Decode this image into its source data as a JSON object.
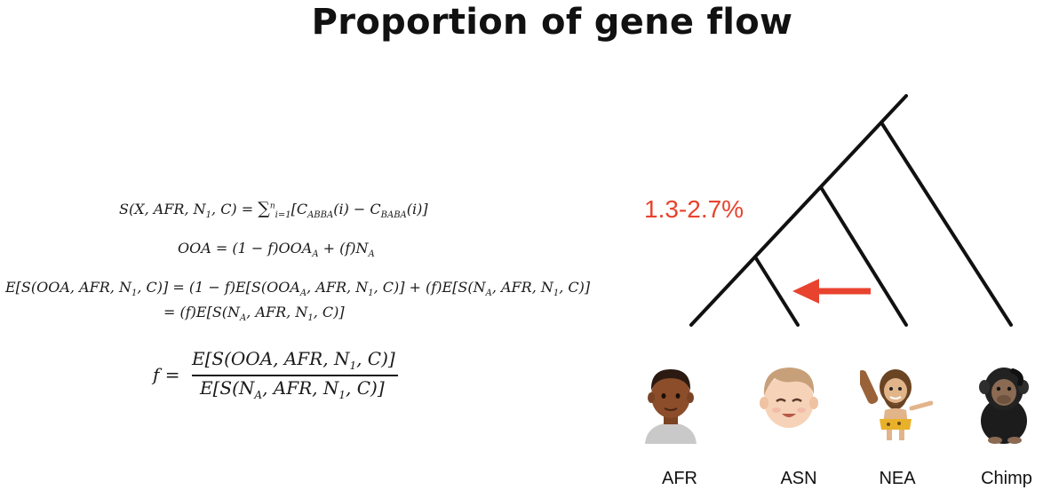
{
  "title": "Proportion of gene flow",
  "equations": {
    "line1_lhs": "S(X, AFR, N",
    "line1_mid": ", C) = ",
    "line1_sum": "∑",
    "line1_sum_sup": "n",
    "line1_sum_sub": "i=1",
    "line1_rhs_a": "[C",
    "line1_sub_a": "ABBA",
    "line1_rhs_b": "(i) − C",
    "line1_sub_b": "BABA",
    "line1_rhs_c": "(i)]",
    "line2": "OOA = (1 − f)OOA",
    "line2_sub": "A",
    "line2_tail": " + (f)N",
    "line2_tail_sub": "A",
    "line3_a": "E[S(OOA, AFR, N",
    "line3_b": ", C)] = (1 − f)E[S(OOA",
    "line3_c": ", AFR, N",
    "line3_d": ", C)] + (f)E[S(N",
    "line3_e": ", AFR, N",
    "line3_f": ", C)]",
    "line4_a": "= (f)E[S(N",
    "line4_b": ", AFR, N",
    "line4_c": ", C)]",
    "frac_lhs": "f =",
    "frac_num_a": "E[S(OOA, AFR, N",
    "frac_num_b": ", C)]",
    "frac_den_a": "E[S(N",
    "frac_den_b": ", AFR, N",
    "frac_den_c": ", C)]",
    "sub_1": "1",
    "sub_A": "A"
  },
  "gene_flow_label": "1.3-2.7%",
  "colors": {
    "arrow": "#e8432f",
    "label": "#e8432f",
    "tree": "#111111"
  },
  "leaves": [
    {
      "label": "AFR",
      "icon": "african-person-avatar"
    },
    {
      "label": "ASN",
      "icon": "asian-person-avatar"
    },
    {
      "label": "NEA",
      "icon": "neanderthal-avatar"
    },
    {
      "label": "Chimp",
      "icon": "chimpanzee-avatar"
    }
  ]
}
